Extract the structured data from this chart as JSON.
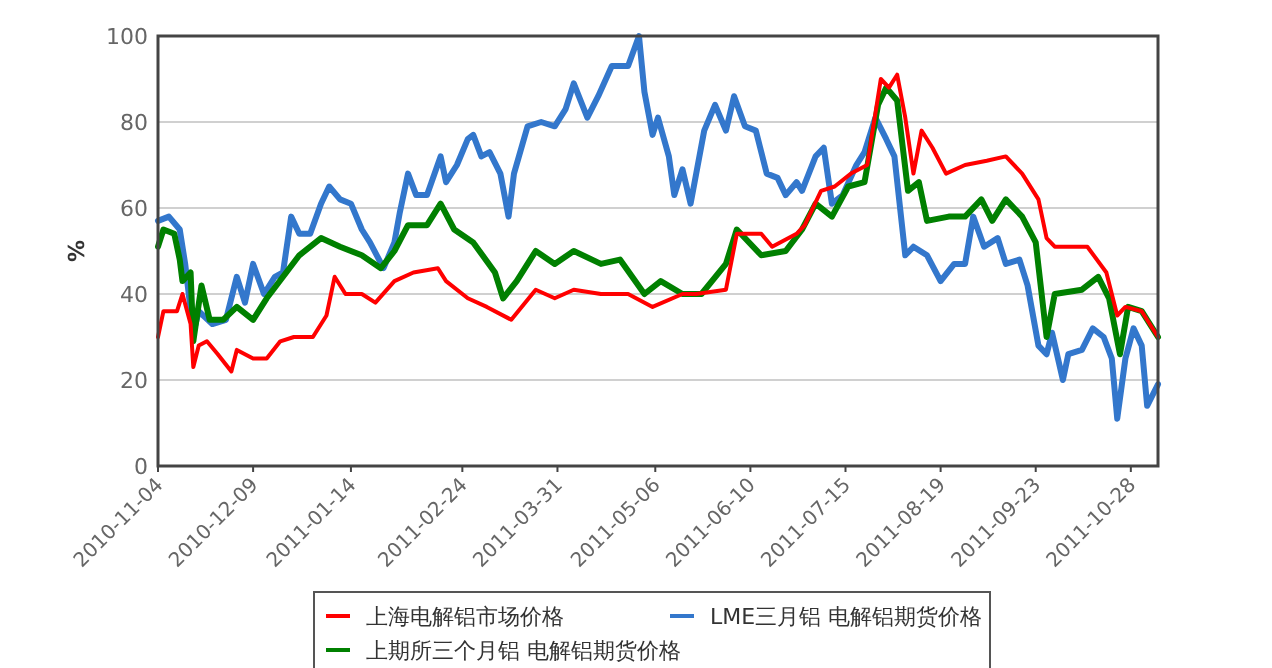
{
  "chart_data": {
    "type": "line",
    "ylabel": "%",
    "xlim": [
      "2010-11-04",
      "2011-11-07"
    ],
    "ylim": [
      0,
      100
    ],
    "yticks": [
      0,
      20,
      40,
      60,
      80,
      100
    ],
    "xticks": [
      "2010-11-04",
      "2010-12-09",
      "2011-01-14",
      "2011-02-24",
      "2011-03-31",
      "2011-05-06",
      "2011-06-10",
      "2011-07-15",
      "2011-08-19",
      "2011-09-23",
      "2011-10-28"
    ],
    "grid": "y",
    "legend": "bottom",
    "series": [
      {
        "name": "上海电解铝市场价格",
        "color": "#ff0000",
        "x": [
          "2010-11-04",
          "2010-11-06",
          "2010-11-10",
          "2010-11-11",
          "2010-11-13",
          "2010-11-16",
          "2010-11-17",
          "2010-11-19",
          "2010-11-22",
          "2010-11-26",
          "2010-12-01",
          "2010-12-03",
          "2010-12-09",
          "2010-12-14",
          "2010-12-19",
          "2010-12-24",
          "2010-12-31",
          "2011-01-05",
          "2011-01-08",
          "2011-01-12",
          "2011-01-18",
          "2011-01-23",
          "2011-01-30",
          "2011-02-06",
          "2011-02-15",
          "2011-02-18",
          "2011-02-26",
          "2011-03-05",
          "2011-03-14",
          "2011-03-23",
          "2011-03-30",
          "2011-04-06",
          "2011-04-16",
          "2011-04-26",
          "2011-05-05",
          "2011-05-16",
          "2011-05-21",
          "2011-06-01",
          "2011-06-05",
          "2011-06-14",
          "2011-06-18",
          "2011-06-27",
          "2011-06-30",
          "2011-07-06",
          "2011-07-11",
          "2011-07-17",
          "2011-07-23",
          "2011-07-28",
          "2011-07-31",
          "2011-08-03",
          "2011-08-06",
          "2011-08-09",
          "2011-08-12",
          "2011-08-16",
          "2011-08-21",
          "2011-08-28",
          "2011-09-05",
          "2011-09-12",
          "2011-09-18",
          "2011-09-24",
          "2011-09-27",
          "2011-09-30",
          "2011-10-12",
          "2011-10-19",
          "2011-10-23",
          "2011-10-26",
          "2011-11-01",
          "2011-11-07"
        ],
        "values": [
          30,
          36,
          36,
          36,
          40,
          33,
          23,
          28,
          29,
          26,
          22,
          27,
          25,
          25,
          29,
          30,
          30,
          35,
          44,
          40,
          40,
          38,
          43,
          45,
          46,
          43,
          39,
          37,
          34,
          41,
          39,
          41,
          40,
          40,
          37,
          40,
          40,
          41,
          54,
          54,
          51,
          54,
          56,
          64,
          65,
          68,
          70,
          90,
          88,
          91,
          81,
          68,
          78,
          74,
          68,
          70,
          71,
          72,
          68,
          62,
          53,
          51,
          51,
          45,
          35,
          37,
          36,
          30
        ]
      },
      {
        "name": "LME三月铝 电解铝期货价格",
        "color": "#3377cc",
        "x": [
          "2010-11-04",
          "2010-11-08",
          "2010-11-12",
          "2010-11-14",
          "2010-11-17",
          "2010-11-19",
          "2010-11-24",
          "2010-11-29",
          "2010-12-03",
          "2010-12-06",
          "2010-12-09",
          "2010-12-13",
          "2010-12-17",
          "2010-12-20",
          "2010-12-23",
          "2010-12-26",
          "2010-12-30",
          "2011-01-03",
          "2011-01-06",
          "2011-01-10",
          "2011-01-14",
          "2011-01-18",
          "2011-01-21",
          "2011-01-26",
          "2011-01-30",
          "2011-02-01",
          "2011-02-04",
          "2011-02-07",
          "2011-02-11",
          "2011-02-16",
          "2011-02-18",
          "2011-02-22",
          "2011-02-26",
          "2011-02-28",
          "2011-03-03",
          "2011-03-06",
          "2011-03-10",
          "2011-03-13",
          "2011-03-15",
          "2011-03-20",
          "2011-03-25",
          "2011-03-30",
          "2011-04-03",
          "2011-04-06",
          "2011-04-11",
          "2011-04-15",
          "2011-04-20",
          "2011-04-26",
          "2011-04-30",
          "2011-05-02",
          "2011-05-05",
          "2011-05-07",
          "2011-05-11",
          "2011-05-13",
          "2011-05-16",
          "2011-05-19",
          "2011-05-24",
          "2011-05-28",
          "2011-06-01",
          "2011-06-04",
          "2011-06-08",
          "2011-06-12",
          "2011-06-16",
          "2011-06-20",
          "2011-06-23",
          "2011-06-27",
          "2011-06-29",
          "2011-07-04",
          "2011-07-07",
          "2011-07-10",
          "2011-07-14",
          "2011-07-19",
          "2011-07-22",
          "2011-07-26",
          "2011-07-30",
          "2011-08-02",
          "2011-08-06",
          "2011-08-09",
          "2011-08-14",
          "2011-08-19",
          "2011-08-24",
          "2011-08-28",
          "2011-08-31",
          "2011-09-04",
          "2011-09-09",
          "2011-09-12",
          "2011-09-17",
          "2011-09-20",
          "2011-09-24",
          "2011-09-27",
          "2011-09-29",
          "2011-10-03",
          "2011-10-05",
          "2011-10-10",
          "2011-10-14",
          "2011-10-18",
          "2011-10-21",
          "2011-10-23",
          "2011-10-26",
          "2011-10-29",
          "2011-11-01",
          "2011-11-03",
          "2011-11-07"
        ],
        "values": [
          57,
          58,
          55,
          47,
          31,
          36,
          33,
          34,
          44,
          38,
          47,
          40,
          44,
          45,
          58,
          54,
          54,
          61,
          65,
          62,
          61,
          55,
          52,
          46,
          52,
          59,
          68,
          63,
          63,
          72,
          66,
          70,
          76,
          77,
          72,
          73,
          68,
          58,
          68,
          79,
          80,
          79,
          83,
          89,
          81,
          86,
          93,
          93,
          100,
          87,
          77,
          81,
          72,
          63,
          69,
          61,
          78,
          84,
          78,
          86,
          79,
          78,
          68,
          67,
          63,
          66,
          64,
          72,
          74,
          61,
          63,
          70,
          73,
          81,
          76,
          72,
          49,
          51,
          49,
          43,
          47,
          47,
          58,
          51,
          53,
          47,
          48,
          42,
          28,
          26,
          31,
          20,
          26,
          27,
          32,
          30,
          25,
          11,
          25,
          32,
          28,
          14,
          19
        ]
      },
      {
        "name": "上期所三个月铝 电解铝期货价格",
        "color": "#008000",
        "x": [
          "2010-11-04",
          "2010-11-06",
          "2010-11-10",
          "2010-11-12",
          "2010-11-13",
          "2010-11-16",
          "2010-11-17",
          "2010-11-20",
          "2010-11-23",
          "2010-11-28",
          "2010-12-03",
          "2010-12-09",
          "2010-12-14",
          "2010-12-20",
          "2010-12-26",
          "2011-01-03",
          "2011-01-10",
          "2011-01-18",
          "2011-01-25",
          "2011-01-30",
          "2011-02-04",
          "2011-02-11",
          "2011-02-16",
          "2011-02-21",
          "2011-02-28",
          "2011-03-08",
          "2011-03-11",
          "2011-03-16",
          "2011-03-23",
          "2011-03-30",
          "2011-04-06",
          "2011-04-16",
          "2011-04-23",
          "2011-05-02",
          "2011-05-08",
          "2011-05-16",
          "2011-05-23",
          "2011-06-01",
          "2011-06-05",
          "2011-06-14",
          "2011-06-23",
          "2011-06-29",
          "2011-07-04",
          "2011-07-10",
          "2011-07-16",
          "2011-07-22",
          "2011-07-27",
          "2011-07-30",
          "2011-08-03",
          "2011-08-07",
          "2011-08-11",
          "2011-08-14",
          "2011-08-22",
          "2011-08-28",
          "2011-09-03",
          "2011-09-07",
          "2011-09-12",
          "2011-09-18",
          "2011-09-23",
          "2011-09-27",
          "2011-09-30",
          "2011-10-10",
          "2011-10-16",
          "2011-10-20",
          "2011-10-24",
          "2011-10-27",
          "2011-11-01",
          "2011-11-07"
        ],
        "values": [
          51,
          55,
          54,
          48,
          43,
          45,
          29,
          42,
          34,
          34,
          37,
          34,
          39,
          44,
          49,
          53,
          51,
          49,
          46,
          50,
          56,
          56,
          61,
          55,
          52,
          45,
          39,
          43,
          50,
          47,
          50,
          47,
          48,
          40,
          43,
          40,
          40,
          47,
          55,
          49,
          50,
          55,
          61,
          58,
          65,
          66,
          84,
          88,
          85,
          64,
          66,
          57,
          58,
          58,
          62,
          57,
          62,
          58,
          52,
          30,
          40,
          41,
          44,
          39,
          26,
          37,
          36,
          30
        ]
      }
    ]
  }
}
